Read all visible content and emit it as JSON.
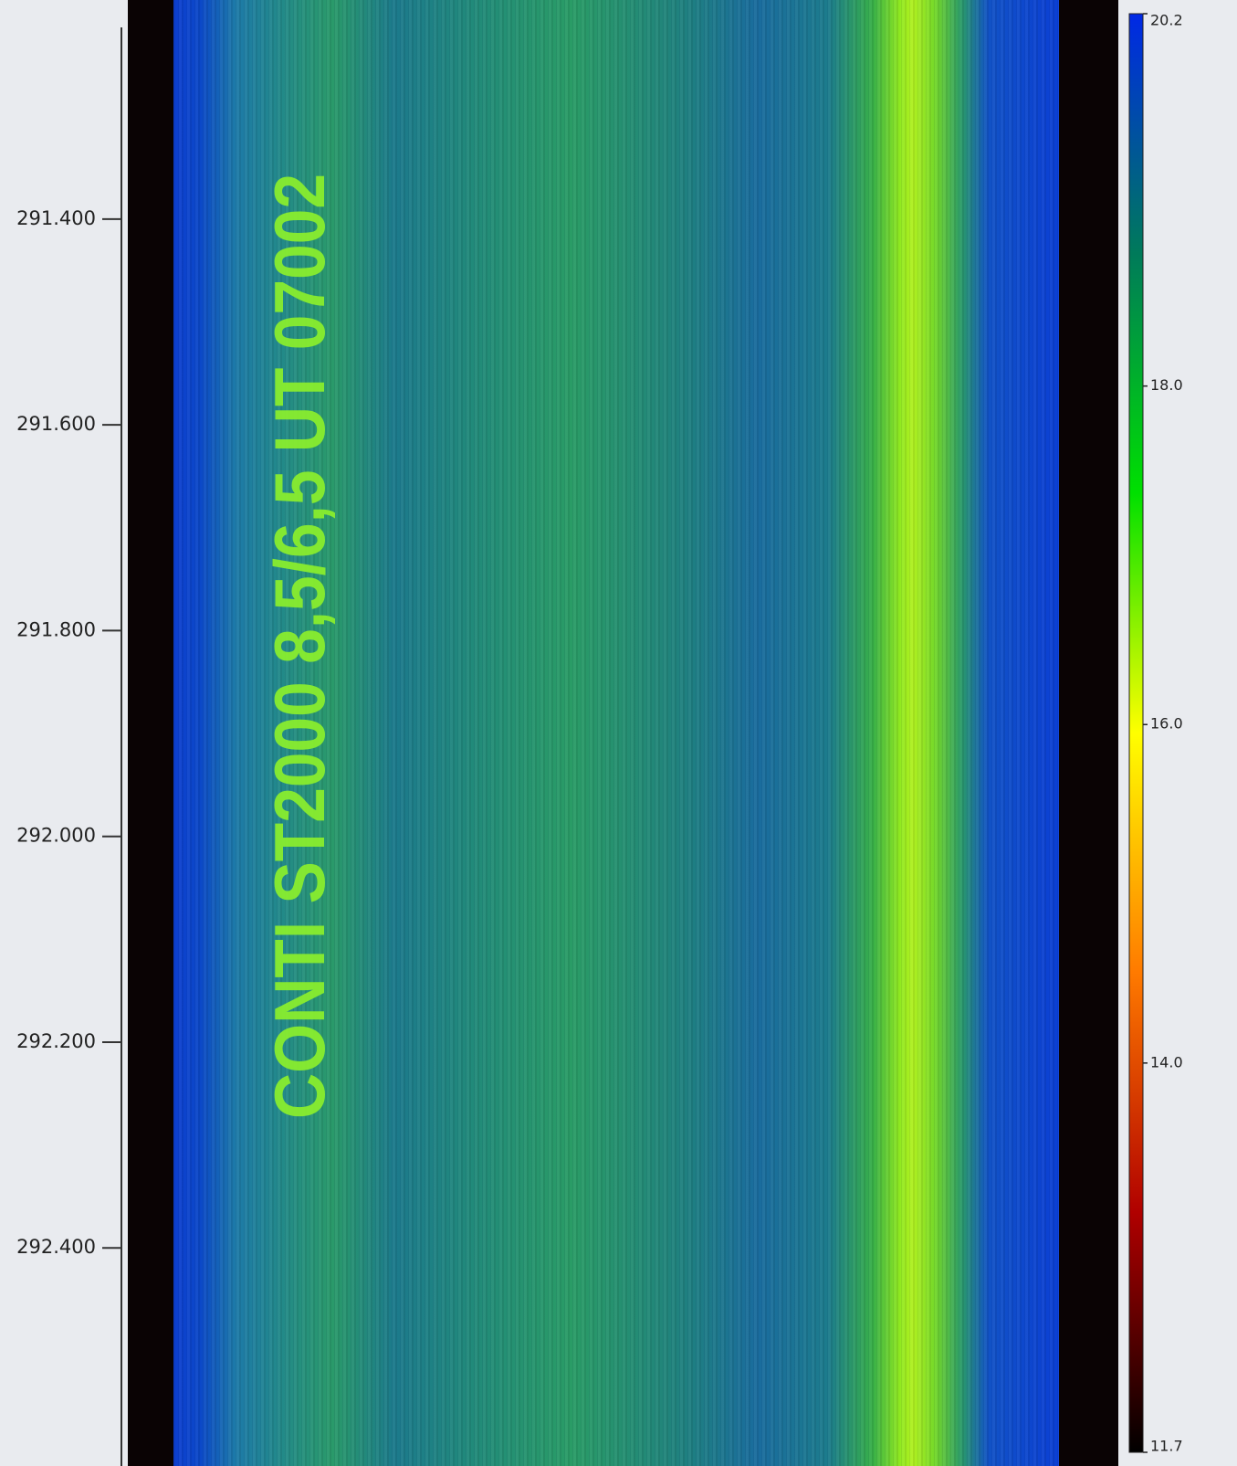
{
  "chart_data": {
    "type": "heatmap",
    "annotation": "CONTI ST2000  8,5/6,5 UT 07002",
    "ylim": [
      291.187,
      292.612
    ],
    "yticks": [
      {
        "value": 291.4,
        "label": "291.400"
      },
      {
        "value": 291.6,
        "label": "291.600"
      },
      {
        "value": 291.8,
        "label": "291.800"
      },
      {
        "value": 292.0,
        "label": "292.000"
      },
      {
        "value": 292.2,
        "label": "292.200"
      },
      {
        "value": 292.4,
        "label": "292.400"
      }
    ],
    "colorbar": {
      "lim": [
        11.7,
        20.2
      ],
      "ticks": [
        20.2,
        {
          "value": 18.0,
          "label": "18.0"
        },
        {
          "value": 16.0,
          "label": "16.0"
        },
        {
          "value": 14.0,
          "label": "14.0"
        },
        11.7
      ],
      "colors": [
        "#000000",
        "#b00000",
        "#ff7a00",
        "#ffff00",
        "#00e000",
        "#007a5a",
        "#0028e6"
      ]
    }
  }
}
